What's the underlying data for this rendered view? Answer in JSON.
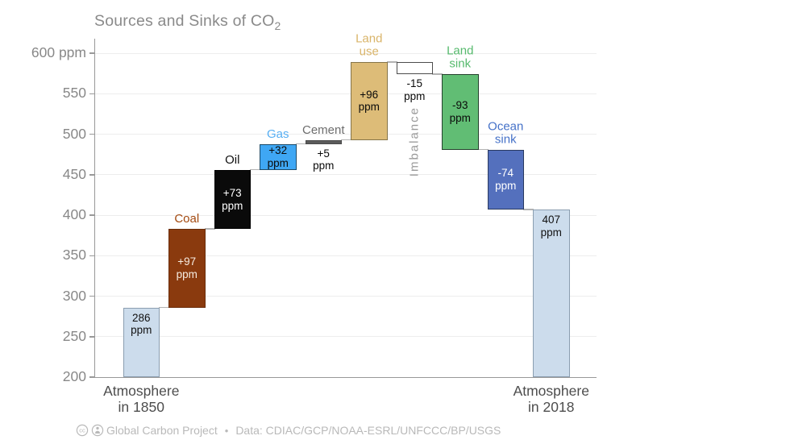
{
  "header": {
    "title_main": "Sources and Sinks of CO",
    "title_sub": "2"
  },
  "footer": {
    "license_icons": [
      "cc-icon",
      "by-icon"
    ],
    "credit": "Global Carbon Project",
    "bullet": "•",
    "source": "Data: CDIAC/GCP/NOAA-ESRL/UNFCCC/BP/USGS"
  },
  "chart_data": {
    "type": "bar",
    "subtype": "waterfall",
    "title": "Sources and Sinks of CO2",
    "unit": "ppm",
    "ylim": [
      200,
      600
    ],
    "grid": true,
    "yticks": [
      {
        "value": 600,
        "label": "600 ppm"
      },
      {
        "value": 550,
        "label": "550"
      },
      {
        "value": 500,
        "label": "500"
      },
      {
        "value": 450,
        "label": "450"
      },
      {
        "value": 400,
        "label": "400"
      },
      {
        "value": 350,
        "label": "350"
      },
      {
        "value": 300,
        "label": "300"
      },
      {
        "value": 250,
        "label": "250"
      },
      {
        "value": 200,
        "label": "200"
      }
    ],
    "bars": [
      {
        "name": "atmosphere-1850",
        "label": "",
        "start": 200,
        "end": 286,
        "value": 286,
        "fill": "#ccdcec",
        "border": "#8b9eb0",
        "value_label": "286\nppm",
        "value_color": "#111111",
        "value_pos": "inside-top",
        "axis_label": "Atmosphere\nin 1850"
      },
      {
        "name": "coal",
        "label": "Coal",
        "label_color": "#a3490f",
        "start": 286,
        "end": 383,
        "value": 97,
        "fill": "#8a3a0e",
        "border": "#6b2d0a",
        "value_label": "+97\nppm",
        "value_color": "#f6ece1",
        "value_pos": "center"
      },
      {
        "name": "oil",
        "label": "Oil",
        "label_color": "#111111",
        "start": 383,
        "end": 456,
        "value": 73,
        "fill": "#0a0a0a",
        "border": "#000000",
        "value_label": "+73\nppm",
        "value_color": "#ffffff",
        "value_pos": "center"
      },
      {
        "name": "gas",
        "label": "Gas",
        "label_color": "#56aef3",
        "start": 456,
        "end": 488,
        "value": 32,
        "fill": "#3fa7f4",
        "border": "#1c4a68",
        "value_label": "+32\nppm",
        "value_color": "#0a0a0a",
        "value_pos": "center"
      },
      {
        "name": "cement",
        "label": "Cement",
        "label_color": "#6d6d6d",
        "start": 488,
        "end": 493,
        "value": 5,
        "fill": "#5b5b5b",
        "border": "#4a4a4a",
        "value_label": "+5\nppm",
        "value_color": "#0a0a0a",
        "value_pos": "below"
      },
      {
        "name": "land-use",
        "label": "Land\nuse",
        "label_color": "#d9b469",
        "start": 493,
        "end": 589,
        "value": 96,
        "fill": "#ddbc78",
        "border": "#857448",
        "value_label": "+96\nppm",
        "value_color": "#0a0a0a",
        "value_pos": "center"
      },
      {
        "name": "imbalance",
        "label": "",
        "start": 589,
        "end": 574,
        "value": -15,
        "fill": "#ffffff",
        "border": "#4d4d4d",
        "value_label": "-15\nppm",
        "value_color": "#0a0a0a",
        "value_pos": "below",
        "rotated_label": "Imbalance",
        "rotated_label_color": "#9a9a9a"
      },
      {
        "name": "land-sink",
        "label": "Land\nsink",
        "label_color": "#56ba6d",
        "start": 574,
        "end": 481,
        "value": -93,
        "fill": "#61bd74",
        "border": "#24402c",
        "value_label": "-93\nppm",
        "value_color": "#0a0a0a",
        "value_pos": "center"
      },
      {
        "name": "ocean-sink",
        "label": "Ocean\nsink",
        "label_color": "#4672c8",
        "start": 481,
        "end": 407,
        "value": -74,
        "fill": "#5470bd",
        "border": "#2a3a60",
        "value_label": "-74\nppm",
        "value_color": "#ffffff",
        "value_pos": "center"
      },
      {
        "name": "atmosphere-2018",
        "label": "",
        "start": 200,
        "end": 407,
        "value": 407,
        "fill": "#ccdcec",
        "border": "#8b9eb0",
        "value_label": "407\nppm",
        "value_color": "#111111",
        "value_pos": "inside-top",
        "axis_label": "Atmosphere\nin 2018"
      }
    ]
  }
}
